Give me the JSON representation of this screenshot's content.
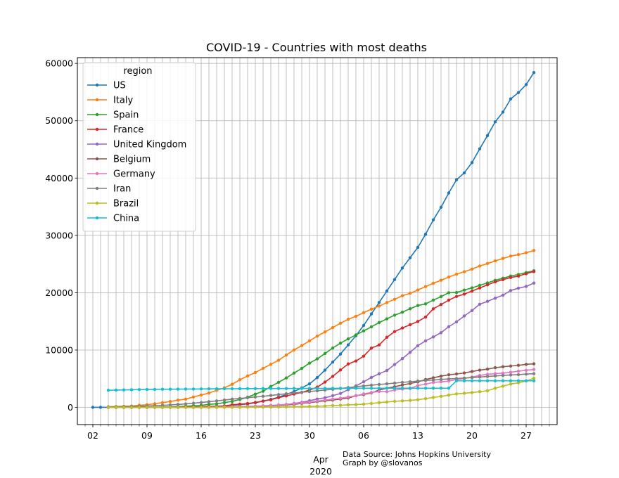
{
  "chart_data": {
    "type": "line",
    "title": "COVID-19 - Countries with most deaths",
    "month_label": "Apr",
    "year_label": "2020",
    "source_line1": "Data Source: Johns Hopkins University",
    "source_line2": "Graph by @slovanos",
    "legend_title": "region",
    "legend_position": "upper-left",
    "grid": true,
    "x_start": "2020-03-04",
    "xlim": [
      "2020-02-29",
      "2020-05-01"
    ],
    "ylim": [
      -3000,
      61000
    ],
    "x_tick_labels": [
      "02",
      "09",
      "16",
      "23",
      "30",
      "06",
      "13",
      "20",
      "27"
    ],
    "y_ticks": [
      0,
      10000,
      20000,
      30000,
      40000,
      50000,
      60000
    ],
    "series": [
      {
        "name": "US",
        "color": "#1f77b4",
        "values": [
          10,
          11,
          12,
          15,
          19,
          22,
          26,
          30,
          38,
          41,
          49,
          57,
          69,
          87,
          108,
          150,
          206,
          255,
          348,
          472,
          600,
          811,
          1081,
          1395,
          1774,
          2257,
          2760,
          3400,
          4100,
          5200,
          6500,
          7900,
          9300,
          10900,
          12500,
          14300,
          16300,
          18300,
          20300,
          22300,
          24300,
          26100,
          27900,
          30200,
          32700,
          34900,
          37400,
          39700,
          40900,
          42700,
          45100,
          47400,
          49800,
          51500,
          53800,
          54900,
          56300,
          58400
        ]
      },
      {
        "name": "Italy",
        "color": "#ff7f0e",
        "values": [
          107,
          148,
          197,
          233,
          366,
          463,
          631,
          827,
          1016,
          1266,
          1441,
          1809,
          2158,
          2503,
          2978,
          3405,
          4032,
          4825,
          5476,
          6077,
          6820,
          7503,
          8215,
          9134,
          10023,
          10779,
          11591,
          12428,
          13155,
          13915,
          14681,
          15362,
          15887,
          16523,
          17127,
          17669,
          18279,
          18849,
          19468,
          19899,
          20465,
          21067,
          21645,
          22170,
          22745,
          23227,
          23660,
          24114,
          24648,
          25085,
          25549,
          25969,
          26384,
          26644,
          26977,
          27359
        ]
      },
      {
        "name": "Spain",
        "color": "#2ca02c",
        "values": [
          2,
          3,
          5,
          10,
          17,
          28,
          35,
          54,
          55,
          133,
          195,
          289,
          342,
          533,
          623,
          830,
          1043,
          1375,
          1772,
          2311,
          2808,
          3647,
          4365,
          5138,
          5982,
          6803,
          7716,
          8464,
          9387,
          10348,
          11198,
          11947,
          12641,
          13341,
          14045,
          14792,
          15447,
          16081,
          16606,
          17209,
          17756,
          18056,
          18708,
          19315,
          20002,
          20043,
          20453,
          20852,
          21282,
          21717,
          22157,
          22524,
          22902,
          23190,
          23521,
          23822
        ]
      },
      {
        "name": "France",
        "color": "#d62728",
        "values": [
          4,
          4,
          6,
          9,
          11,
          19,
          19,
          33,
          48,
          48,
          79,
          91,
          91,
          149,
          149,
          244,
          451,
          563,
          676,
          862,
          1102,
          1333,
          1698,
          1997,
          2317,
          2611,
          3030,
          3532,
          4414,
          5398,
          6520,
          7574,
          8093,
          8926,
          10343,
          10887,
          12228,
          13215,
          13851,
          14412,
          14986,
          15748,
          17188,
          17941,
          18703,
          19345,
          19744,
          20292,
          20829,
          21373,
          21889,
          22278,
          22648,
          22890,
          23327,
          23694
        ]
      },
      {
        "name": "United Kingdom",
        "color": "#9467bd",
        "values": [
          0,
          1,
          2,
          2,
          3,
          7,
          7,
          9,
          10,
          28,
          43,
          65,
          81,
          115,
          158,
          194,
          250,
          285,
          359,
          508,
          694,
          877,
          1161,
          1455,
          1669,
          2043,
          2425,
          3095,
          3747,
          4461,
          5221,
          5865,
          6433,
          7471,
          8505,
          9608,
          10760,
          11599,
          12285,
          13029,
          14073,
          14915,
          15944,
          16879,
          17994,
          18492,
          19051,
          19567,
          20381,
          20794,
          21092,
          21678
        ]
      },
      {
        "name": "Belgium",
        "color": "#8c564b",
        "values": [
          0,
          0,
          0,
          0,
          0,
          0,
          0,
          3,
          4,
          4,
          5,
          10,
          14,
          21,
          37,
          67,
          75,
          88,
          122,
          178,
          220,
          289,
          353,
          431,
          513,
          705,
          828,
          1011,
          1143,
          1283,
          1447,
          1632,
          2035,
          2240,
          2523,
          3019,
          3346,
          3600,
          3903,
          4157,
          4440,
          4857,
          5163,
          5453,
          5683,
          5828,
          5998,
          6262,
          6490,
          6679,
          6917,
          7094,
          7207,
          7331,
          7501,
          7594
        ]
      },
      {
        "name": "Germany",
        "color": "#e377c2",
        "values": [
          0,
          0,
          0,
          2,
          2,
          3,
          3,
          7,
          9,
          11,
          17,
          24,
          28,
          44,
          67,
          84,
          94,
          123,
          157,
          206,
          267,
          342,
          433,
          533,
          645,
          775,
          920,
          1107,
          1275,
          1444,
          1584,
          1810,
          2016,
          2349,
          2607,
          2767,
          2736,
          3022,
          3194,
          3294,
          3804,
          4052,
          4352,
          4459,
          4586,
          4862,
          5033,
          5279,
          5575,
          5760,
          5877,
          5976,
          6126,
          6314,
          6467,
          6623
        ]
      },
      {
        "name": "Iran",
        "color": "#7f7f7f",
        "values": [
          92,
          107,
          124,
          145,
          194,
          237,
          291,
          354,
          429,
          514,
          611,
          724,
          853,
          988,
          1135,
          1284,
          1433,
          1556,
          1685,
          1812,
          1934,
          2077,
          2234,
          2378,
          2517,
          2640,
          2757,
          2898,
          3036,
          3160,
          3294,
          3452,
          3603,
          3739,
          3872,
          3993,
          4110,
          4232,
          4357,
          4474,
          4585,
          4683,
          4777,
          4869,
          4958,
          5031,
          5118,
          5209,
          5297,
          5391,
          5481,
          5574,
          5650,
          5710,
          5806,
          5877
        ]
      },
      {
        "name": "Brazil",
        "color": "#bcbd22",
        "values": [
          0,
          0,
          0,
          0,
          0,
          0,
          0,
          0,
          0,
          0,
          0,
          0,
          0,
          1,
          3,
          6,
          11,
          15,
          25,
          34,
          46,
          59,
          77,
          92,
          111,
          136,
          159,
          201,
          240,
          324,
          359,
          445,
          486,
          564,
          686,
          819,
          950,
          1057,
          1124,
          1223,
          1328,
          1532,
          1736,
          1924,
          2141,
          2354,
          2462,
          2587,
          2741,
          2906,
          3331,
          3704,
          4057,
          4286,
          4603,
          5083
        ]
      },
      {
        "name": "China",
        "color": "#17becf",
        "values": [
          2984,
          3015,
          3045,
          3073,
          3100,
          3123,
          3140,
          3162,
          3173,
          3180,
          3194,
          3204,
          3218,
          3231,
          3242,
          3250,
          3253,
          3261,
          3270,
          3277,
          3282,
          3287,
          3292,
          3295,
          3300,
          3304,
          3308,
          3309,
          3316,
          3322,
          3326,
          3330,
          3333,
          3335,
          3337,
          3339,
          3340,
          3343,
          3343,
          3343,
          3345,
          3346,
          3346,
          3346,
          3346,
          4636,
          4636,
          4636,
          4636,
          4636,
          4636,
          4636,
          4636,
          4636,
          4636,
          4637
        ]
      }
    ]
  }
}
